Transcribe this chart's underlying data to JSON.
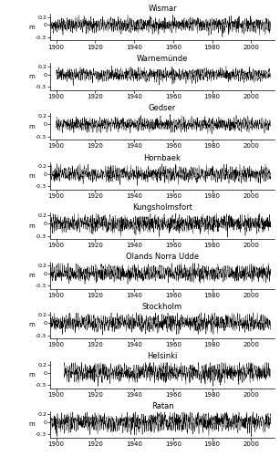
{
  "stations": [
    "Wismar",
    "Warnemünde",
    "Gedser",
    "Hornbaek",
    "Kungsholmsfort",
    "Olands Norra Udde",
    "Stockholm",
    "Helsinki",
    "Ratan"
  ],
  "ylim": [
    -0.38,
    0.28
  ],
  "yticks": [
    -0.3,
    0,
    0.2
  ],
  "xticks": [
    1900,
    1920,
    1940,
    1960,
    1980,
    2000
  ],
  "xlim": [
    1897,
    2012
  ],
  "ylabel": "m",
  "background_color": "#ffffff",
  "line_color": "#000000",
  "line_width": 0.3,
  "seeds": [
    42,
    43,
    44,
    45,
    46,
    47,
    48,
    49,
    50
  ],
  "amplitudes": [
    0.08,
    0.07,
    0.07,
    0.08,
    0.09,
    0.09,
    0.09,
    0.1,
    0.1
  ],
  "start_years": [
    1897,
    1900,
    1900,
    1891,
    1886,
    1892,
    1889,
    1904,
    1893
  ]
}
